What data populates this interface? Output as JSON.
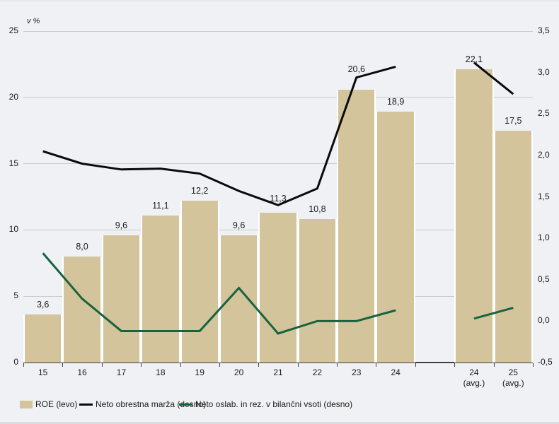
{
  "figure": {
    "unit_label": "v %"
  },
  "colors": {
    "background": "#eff1f4",
    "bar": "#d3c49c",
    "black_line": "#0a0a0a",
    "green_line": "#17633e",
    "gridline": "#c8cacd",
    "axis": "#414141"
  },
  "legend": {
    "items": [
      {
        "label": "ROE (levo)",
        "swatch": "bar",
        "color": "#d3c49c"
      },
      {
        "label": "Neto obrestna marža (desno)",
        "swatch": "line",
        "color": "#0a0a0a"
      },
      {
        "label": "Neto oslab. in rez. v bilančni vsoti (desno)",
        "swatch": "line",
        "color": "#17633e"
      }
    ]
  },
  "chart_data": {
    "type": "bar+line",
    "title": "",
    "unit_label": "v %",
    "categories": [
      "15",
      "16",
      "17",
      "18",
      "19",
      "20",
      "21",
      "22",
      "23",
      "24",
      "",
      "24 (avg.)",
      "25 (avg.)"
    ],
    "x_labels": [
      [
        "15"
      ],
      [
        "16"
      ],
      [
        "17"
      ],
      [
        "18"
      ],
      [
        "19"
      ],
      [
        "20"
      ],
      [
        "21"
      ],
      [
        "22"
      ],
      [
        "23"
      ],
      [
        "24"
      ],
      [],
      [
        "24",
        "(avg.)"
      ],
      [
        "25",
        "(avg.)"
      ]
    ],
    "series": [
      {
        "name": "ROE (levo)",
        "type": "bar",
        "axis": "left",
        "color": "#d3c49c",
        "values": [
          3.6,
          8.0,
          9.6,
          11.1,
          12.2,
          9.6,
          11.3,
          10.8,
          20.6,
          18.9,
          null,
          22.1,
          17.5
        ],
        "labels": [
          "3,6",
          "8,0",
          "9,6",
          "11,1",
          "12,2",
          "9,6",
          "11,3",
          "10,8",
          "20,6",
          "18,9",
          null,
          "22,1",
          "17,5"
        ]
      },
      {
        "name": "Neto obrestna marža (desno)",
        "type": "line",
        "axis": "right",
        "color": "#0a0a0a",
        "values": [
          2.05,
          1.9,
          1.83,
          1.84,
          1.78,
          1.57,
          1.4,
          1.6,
          2.94,
          3.07,
          null,
          3.12,
          2.74
        ]
      },
      {
        "name": "Neto oslab. in rez. v bilančni vsoti (desno)",
        "type": "line",
        "axis": "right",
        "color": "#17633e",
        "values": [
          0.82,
          0.27,
          -0.12,
          -0.12,
          -0.12,
          0.4,
          -0.15,
          0.0,
          0.0,
          0.13,
          null,
          0.03,
          0.16
        ]
      }
    ],
    "left_axis": {
      "min": 0,
      "max": 25,
      "ticks": [
        {
          "v": 0,
          "label": "0"
        },
        {
          "v": 5,
          "label": "5"
        },
        {
          "v": 10,
          "label": "10"
        },
        {
          "v": 15,
          "label": "15"
        },
        {
          "v": 20,
          "label": "20"
        },
        {
          "v": 25,
          "label": "25"
        }
      ]
    },
    "right_axis": {
      "min": -0.5,
      "max": 3.5,
      "ticks": [
        {
          "v": -0.5,
          "label": "-0,5"
        },
        {
          "v": 0,
          "label": "0,0"
        },
        {
          "v": 0.5,
          "label": "0,5"
        },
        {
          "v": 1,
          "label": "1,0"
        },
        {
          "v": 1.5,
          "label": "1,5"
        },
        {
          "v": 2,
          "label": "2,0"
        },
        {
          "v": 2.5,
          "label": "2,5"
        },
        {
          "v": 3,
          "label": "3,0"
        },
        {
          "v": 3.5,
          "label": "3,5"
        }
      ]
    },
    "grid": "horizontal gridlines at left-axis ticks, no vertical grid",
    "legend_position": "bottom"
  }
}
